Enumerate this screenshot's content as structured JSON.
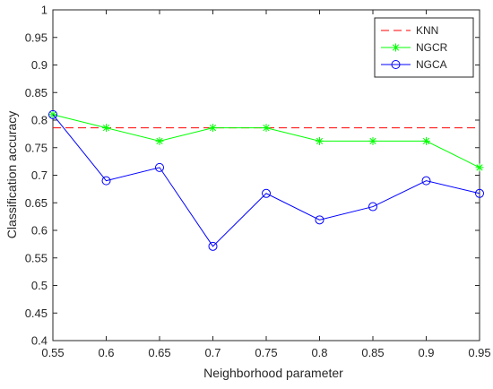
{
  "chart_data": {
    "type": "line",
    "title": "",
    "xlabel": "Neighborhood parameter",
    "ylabel": "Classification accuracy",
    "xlim": [
      0.55,
      0.95
    ],
    "ylim": [
      0.4,
      1.0
    ],
    "xticks": [
      "0.55",
      "0.6",
      "0.65",
      "0.7",
      "0.75",
      "0.8",
      "0.85",
      "0.9",
      "0.95"
    ],
    "yticks": [
      "0.4",
      "0.45",
      "0.5",
      "0.55",
      "0.6",
      "0.65",
      "0.7",
      "0.75",
      "0.8",
      "0.85",
      "0.9",
      "0.95",
      "1"
    ],
    "x": [
      0.55,
      0.6,
      0.65,
      0.7,
      0.75,
      0.8,
      0.85,
      0.9,
      0.95
    ],
    "grid": false,
    "legend_position": "top-right",
    "series": [
      {
        "name": "KNN",
        "color": "#ff0000",
        "line_style": "dashed",
        "marker": "none",
        "values": [
          0.786,
          0.786,
          0.786,
          0.786,
          0.786,
          0.786,
          0.786,
          0.786,
          0.786
        ]
      },
      {
        "name": "NGCR",
        "color": "#00ff00",
        "line_style": "solid",
        "marker": "asterisk",
        "values": [
          0.81,
          0.786,
          0.762,
          0.786,
          0.786,
          0.762,
          0.762,
          0.762,
          0.714
        ]
      },
      {
        "name": "NGCA",
        "color": "#0000ff",
        "line_style": "solid",
        "marker": "circle",
        "values": [
          0.81,
          0.69,
          0.714,
          0.571,
          0.667,
          0.619,
          0.643,
          0.69,
          0.667
        ]
      }
    ]
  }
}
